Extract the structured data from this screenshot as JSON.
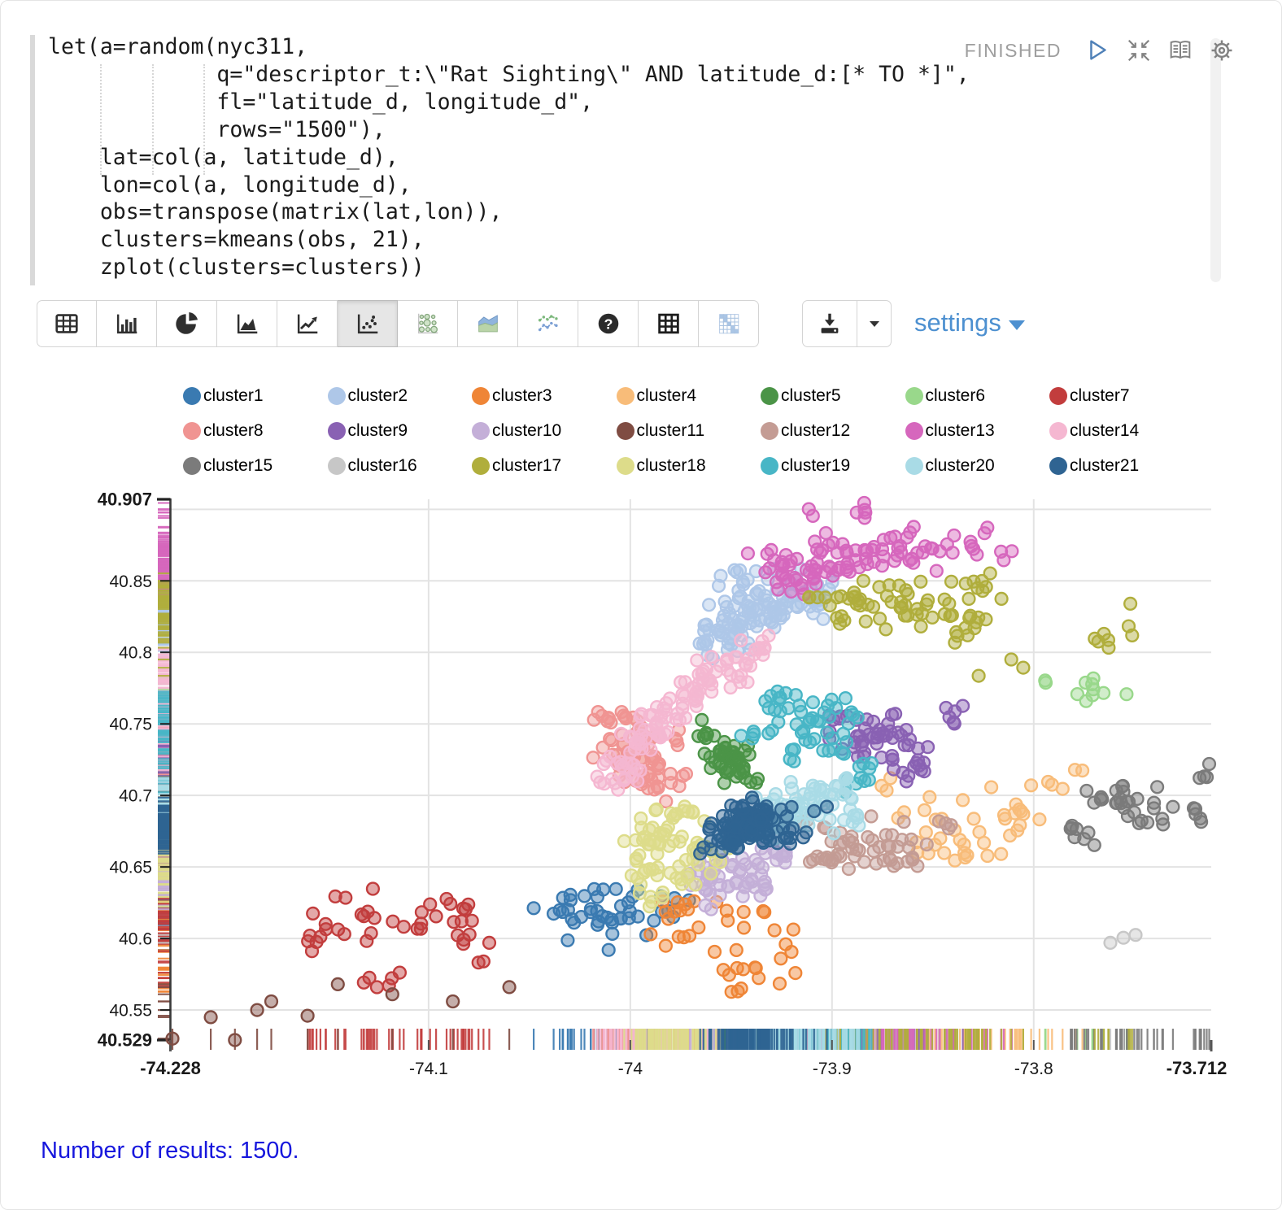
{
  "editor": {
    "status": "FINISHED",
    "code_lines": [
      "let(a=random(nyc311,",
      "             q=\"descriptor_t:\\\"Rat Sighting\\\" AND latitude_d:[* TO *]\",",
      "             fl=\"latitude_d, longitude_d\",",
      "             rows=\"1500\"),",
      "    lat=col(a, latitude_d),",
      "    lon=col(a, longitude_d),",
      "    obs=transpose(matrix(lat,lon)),",
      "    clusters=kmeans(obs, 21),",
      "    zplot(clusters=clusters))"
    ]
  },
  "paragraph_controls": {
    "icons": [
      "run-paragraph",
      "shrink-paragraph",
      "show-editor",
      "paragraph-settings"
    ]
  },
  "toolbar": {
    "chart_types": [
      {
        "id": "table",
        "selected": false
      },
      {
        "id": "bar",
        "selected": false
      },
      {
        "id": "pie",
        "selected": false
      },
      {
        "id": "area",
        "selected": false
      },
      {
        "id": "line",
        "selected": false
      },
      {
        "id": "scatter",
        "selected": true
      },
      {
        "id": "bubble",
        "selected": false
      },
      {
        "id": "stacked-area",
        "selected": false
      },
      {
        "id": "multi-line",
        "selected": false
      },
      {
        "id": "help",
        "selected": false
      },
      {
        "id": "grid",
        "selected": false
      },
      {
        "id": "heatmap",
        "selected": false
      }
    ],
    "settings_label": "settings"
  },
  "footer": {
    "results_text": "Number of results: 1500."
  },
  "chart_data": {
    "type": "scatter",
    "title": "",
    "xlabel": "",
    "ylabel": "",
    "x_range": [
      -74.228,
      -73.712
    ],
    "y_range": [
      40.529,
      40.907
    ],
    "grid": true,
    "legend_position": "top",
    "x_ticks": [
      {
        "value": -74.228,
        "label": "-74.228",
        "bold": true
      },
      {
        "value": -74.1,
        "label": "-74.1",
        "bold": false
      },
      {
        "value": -74.0,
        "label": "-74",
        "bold": false
      },
      {
        "value": -73.9,
        "label": "-73.9",
        "bold": false
      },
      {
        "value": -73.8,
        "label": "-73.8",
        "bold": false
      },
      {
        "value": -73.712,
        "label": "-73.712",
        "bold": true
      }
    ],
    "y_ticks": [
      {
        "value": 40.907,
        "label": "40.907",
        "bold": true
      },
      {
        "value": 40.85,
        "label": "40.85",
        "bold": false
      },
      {
        "value": 40.8,
        "label": "40.8",
        "bold": false
      },
      {
        "value": 40.75,
        "label": "40.75",
        "bold": false
      },
      {
        "value": 40.7,
        "label": "40.7",
        "bold": false
      },
      {
        "value": 40.65,
        "label": "40.65",
        "bold": false
      },
      {
        "value": 40.6,
        "label": "40.6",
        "bold": false
      },
      {
        "value": 40.55,
        "label": "40.55",
        "bold": false
      },
      {
        "value": 40.529,
        "label": "40.529",
        "bold": true
      }
    ],
    "x_gridlines": [
      -74.1,
      -74.0,
      -73.9,
      -73.8
    ],
    "y_gridlines": [
      40.9,
      40.85,
      40.8,
      40.75,
      40.7,
      40.65,
      40.6,
      40.55
    ],
    "rug": true,
    "point_style": {
      "radius": 7.4,
      "fill_opacity": 0.45,
      "stroke_width": 2.4
    },
    "series": [
      {
        "name": "cluster1",
        "color": "#3a7ab1",
        "blobs": [
          [
            -74.03,
            40.615,
            0.012,
            0.01,
            18
          ],
          [
            -74.006,
            40.612,
            0.01,
            0.012,
            18
          ],
          [
            -73.985,
            40.623,
            0.007,
            0.007,
            9
          ]
        ]
      },
      {
        "name": "cluster2",
        "color": "#aec7e8",
        "blobs": [
          [
            -73.952,
            40.812,
            0.009,
            0.007,
            30
          ],
          [
            -73.938,
            40.828,
            0.01,
            0.008,
            40
          ],
          [
            -73.921,
            40.84,
            0.011,
            0.009,
            32
          ],
          [
            -73.947,
            40.852,
            0.006,
            0.005,
            10
          ],
          [
            -73.906,
            40.832,
            0.005,
            0.009,
            8
          ]
        ]
      },
      {
        "name": "cluster3",
        "color": "#ef8536",
        "blobs": [
          [
            -73.96,
            40.607,
            0.013,
            0.011,
            16
          ],
          [
            -73.942,
            40.577,
            0.011,
            0.009,
            12
          ],
          [
            -73.923,
            40.598,
            0.008,
            0.013,
            8
          ],
          [
            -73.975,
            40.623,
            0.005,
            0.004,
            5
          ]
        ]
      },
      {
        "name": "cluster4",
        "color": "#f8bc79",
        "blobs": [
          [
            -73.838,
            40.662,
            0.013,
            0.008,
            16
          ],
          [
            -73.81,
            40.687,
            0.009,
            0.011,
            12
          ],
          [
            -73.855,
            40.688,
            0.009,
            0.009,
            10
          ],
          [
            -73.792,
            40.71,
            0.007,
            0.006,
            6
          ],
          [
            -73.87,
            40.71,
            0.004,
            0.004,
            3
          ]
        ]
      },
      {
        "name": "cluster5",
        "color": "#4b9447",
        "blobs": [
          [
            -73.951,
            40.723,
            0.006,
            0.008,
            38
          ],
          [
            -73.961,
            40.744,
            0.004,
            0.004,
            8
          ],
          [
            -73.938,
            40.71,
            0.003,
            0.003,
            4
          ]
        ]
      },
      {
        "name": "cluster6",
        "color": "#99d88b",
        "blobs": [
          [
            -73.768,
            40.772,
            0.008,
            0.005,
            9
          ],
          [
            -73.797,
            40.779,
            0.002,
            0.002,
            2
          ]
        ]
      },
      {
        "name": "cluster7",
        "color": "#c23d3d",
        "blobs": [
          [
            -74.14,
            40.614,
            0.012,
            0.009,
            16
          ],
          [
            -74.1,
            40.617,
            0.012,
            0.008,
            14
          ],
          [
            -74.077,
            40.6,
            0.007,
            0.011,
            8
          ],
          [
            -74.124,
            40.572,
            0.009,
            0.005,
            6
          ],
          [
            -74.157,
            40.594,
            0.004,
            0.007,
            4
          ]
        ]
      },
      {
        "name": "cluster8",
        "color": "#f09492",
        "blobs": [
          [
            -74.0,
            40.733,
            0.008,
            0.011,
            38
          ],
          [
            -73.99,
            40.711,
            0.008,
            0.007,
            24
          ],
          [
            -74.007,
            40.753,
            0.005,
            0.004,
            10
          ],
          [
            -73.978,
            40.74,
            0.003,
            0.004,
            4
          ]
        ]
      },
      {
        "name": "cluster9",
        "color": "#8961b3",
        "blobs": [
          [
            -73.876,
            40.74,
            0.011,
            0.011,
            42
          ],
          [
            -73.862,
            40.72,
            0.007,
            0.006,
            12
          ],
          [
            -73.838,
            40.757,
            0.0035,
            0.004,
            6
          ],
          [
            -73.897,
            40.755,
            0.004,
            0.004,
            5
          ]
        ]
      },
      {
        "name": "cluster10",
        "color": "#c4afd8",
        "blobs": [
          [
            -73.947,
            40.645,
            0.011,
            0.008,
            38
          ],
          [
            -73.929,
            40.654,
            0.007,
            0.006,
            14
          ],
          [
            -73.958,
            40.631,
            0.006,
            0.005,
            9
          ]
        ]
      },
      {
        "name": "cluster11",
        "color": "#7f4c42",
        "points": [
          [
            -74.227,
            40.53
          ],
          [
            -74.208,
            40.545
          ],
          [
            -74.196,
            40.529
          ],
          [
            -74.185,
            40.55
          ],
          [
            -74.178,
            40.556
          ],
          [
            -74.16,
            40.546
          ],
          [
            -74.145,
            40.568
          ],
          [
            -74.118,
            40.561
          ],
          [
            -74.088,
            40.556
          ],
          [
            -74.06,
            40.566
          ]
        ]
      },
      {
        "name": "cluster12",
        "color": "#c49c94",
        "blobs": [
          [
            -73.886,
            40.667,
            0.011,
            0.008,
            32
          ],
          [
            -73.863,
            40.655,
            0.007,
            0.006,
            12
          ],
          [
            -73.904,
            40.653,
            0.005,
            0.004,
            8
          ],
          [
            -73.846,
            40.679,
            0.004,
            0.003,
            4
          ],
          [
            -73.916,
            40.679,
            0.003,
            0.003,
            3
          ]
        ]
      },
      {
        "name": "cluster13",
        "color": "#d667bd",
        "blobs": [
          [
            -73.921,
            40.857,
            0.009,
            0.008,
            32
          ],
          [
            -73.896,
            40.867,
            0.011,
            0.009,
            34
          ],
          [
            -73.863,
            40.872,
            0.011,
            0.009,
            24
          ],
          [
            -73.836,
            40.878,
            0.006,
            0.008,
            8
          ],
          [
            -73.886,
            40.898,
            0.004,
            0.004,
            5
          ],
          [
            -73.812,
            40.868,
            0.003,
            0.003,
            3
          ],
          [
            -73.908,
            40.9,
            0.002,
            0.002,
            2
          ]
        ]
      },
      {
        "name": "cluster14",
        "color": "#f5b7d1",
        "blobs": [
          [
            -74.004,
            40.722,
            0.006,
            0.006,
            17
          ],
          [
            -73.995,
            40.739,
            0.006,
            0.006,
            19
          ],
          [
            -73.985,
            40.754,
            0.006,
            0.006,
            19
          ],
          [
            -73.973,
            40.768,
            0.006,
            0.006,
            19
          ],
          [
            -73.959,
            40.781,
            0.006,
            0.006,
            17
          ],
          [
            -73.946,
            40.793,
            0.006,
            0.006,
            14
          ],
          [
            -73.936,
            40.804,
            0.005,
            0.005,
            10
          ],
          [
            -74.013,
            40.71,
            0.004,
            0.004,
            5
          ]
        ]
      },
      {
        "name": "cluster15",
        "color": "#7b7b7b",
        "blobs": [
          [
            -73.757,
            40.7,
            0.009,
            0.005,
            16
          ],
          [
            -73.741,
            40.686,
            0.011,
            0.009,
            14
          ],
          [
            -73.774,
            40.673,
            0.007,
            0.006,
            8
          ],
          [
            -73.718,
            40.714,
            0.003,
            0.003,
            3
          ],
          [
            -73.724,
            40.69,
            0.004,
            0.004,
            3
          ]
        ],
        "points": [
          [
            -73.713,
            40.722
          ]
        ]
      },
      {
        "name": "cluster16",
        "color": "#c7c7c7",
        "points": [
          [
            -73.762,
            40.597
          ],
          [
            -73.7555,
            40.6005
          ],
          [
            -73.7495,
            40.6025
          ]
        ]
      },
      {
        "name": "cluster17",
        "color": "#b0ae3c",
        "blobs": [
          [
            -73.886,
            40.837,
            0.011,
            0.008,
            28
          ],
          [
            -73.859,
            40.831,
            0.011,
            0.008,
            24
          ],
          [
            -73.832,
            40.819,
            0.007,
            0.008,
            14
          ],
          [
            -73.827,
            40.846,
            0.005,
            0.004,
            6
          ],
          [
            -73.757,
            40.818,
            0.008,
            0.009,
            8
          ],
          [
            -73.805,
            40.795,
            0.003,
            0.003,
            2
          ],
          [
            -73.826,
            40.784,
            0.002,
            0.002,
            1
          ]
        ]
      },
      {
        "name": "cluster18",
        "color": "#dddc8a",
        "blobs": [
          [
            -73.984,
            40.671,
            0.009,
            0.008,
            28
          ],
          [
            -73.968,
            40.656,
            0.008,
            0.008,
            20
          ],
          [
            -73.994,
            40.646,
            0.006,
            0.006,
            12
          ],
          [
            -73.976,
            40.689,
            0.005,
            0.004,
            10
          ],
          [
            -73.989,
            40.627,
            0.004,
            0.004,
            6
          ]
        ]
      },
      {
        "name": "cluster19",
        "color": "#48b6c6",
        "blobs": [
          [
            -73.914,
            40.754,
            0.009,
            0.008,
            22
          ],
          [
            -73.896,
            40.742,
            0.009,
            0.007,
            18
          ],
          [
            -73.929,
            40.769,
            0.005,
            0.004,
            6
          ],
          [
            -73.886,
            40.716,
            0.007,
            0.006,
            10
          ],
          [
            -73.919,
            40.728,
            0.004,
            0.004,
            5
          ],
          [
            -73.94,
            40.748,
            0.003,
            0.005,
            4
          ]
        ]
      },
      {
        "name": "cluster20",
        "color": "#a9dbe6",
        "blobs": [
          [
            -73.916,
            40.691,
            0.011,
            0.008,
            42
          ],
          [
            -73.896,
            40.704,
            0.007,
            0.005,
            14
          ],
          [
            -73.934,
            40.678,
            0.006,
            0.005,
            12
          ],
          [
            -73.891,
            40.681,
            0.005,
            0.004,
            8
          ]
        ]
      },
      {
        "name": "cluster21",
        "color": "#2f6492",
        "blobs": [
          [
            -73.944,
            40.678,
            0.0075,
            0.0065,
            78
          ],
          [
            -73.933,
            40.687,
            0.006,
            0.005,
            28
          ],
          [
            -73.954,
            40.666,
            0.005,
            0.004,
            18
          ],
          [
            -73.922,
            40.673,
            0.004,
            0.0035,
            8
          ],
          [
            -73.905,
            40.69,
            0.002,
            0.002,
            2
          ]
        ]
      }
    ]
  }
}
